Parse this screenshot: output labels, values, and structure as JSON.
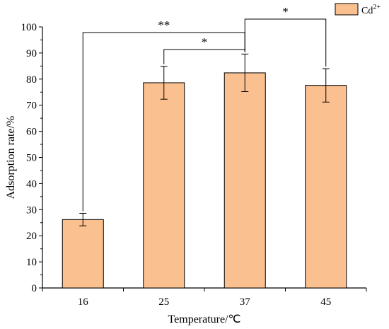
{
  "chart_data": {
    "type": "bar",
    "title": "",
    "xlabel": "Temperature/℃",
    "ylabel": "Adsorption rate/%",
    "categories": [
      "16",
      "25",
      "37",
      "45"
    ],
    "series": [
      {
        "name": "Cd2+",
        "name_base": "Cd",
        "name_sup": "2+",
        "values": [
          26.2,
          78.6,
          82.4,
          77.6
        ],
        "error": [
          2.4,
          6.3,
          7.2,
          6.4
        ],
        "color": "#FAC090"
      }
    ],
    "ylim": [
      0,
      100
    ],
    "yticks": [
      0,
      10,
      20,
      30,
      40,
      50,
      60,
      70,
      80,
      90,
      100
    ],
    "grid": false,
    "legend_position": "top-right",
    "significance": [
      {
        "from": 0,
        "to": 2,
        "label": "**"
      },
      {
        "from": 1,
        "to": 2,
        "label": "*"
      },
      {
        "from": 2,
        "to": 3,
        "label": "*"
      }
    ]
  }
}
